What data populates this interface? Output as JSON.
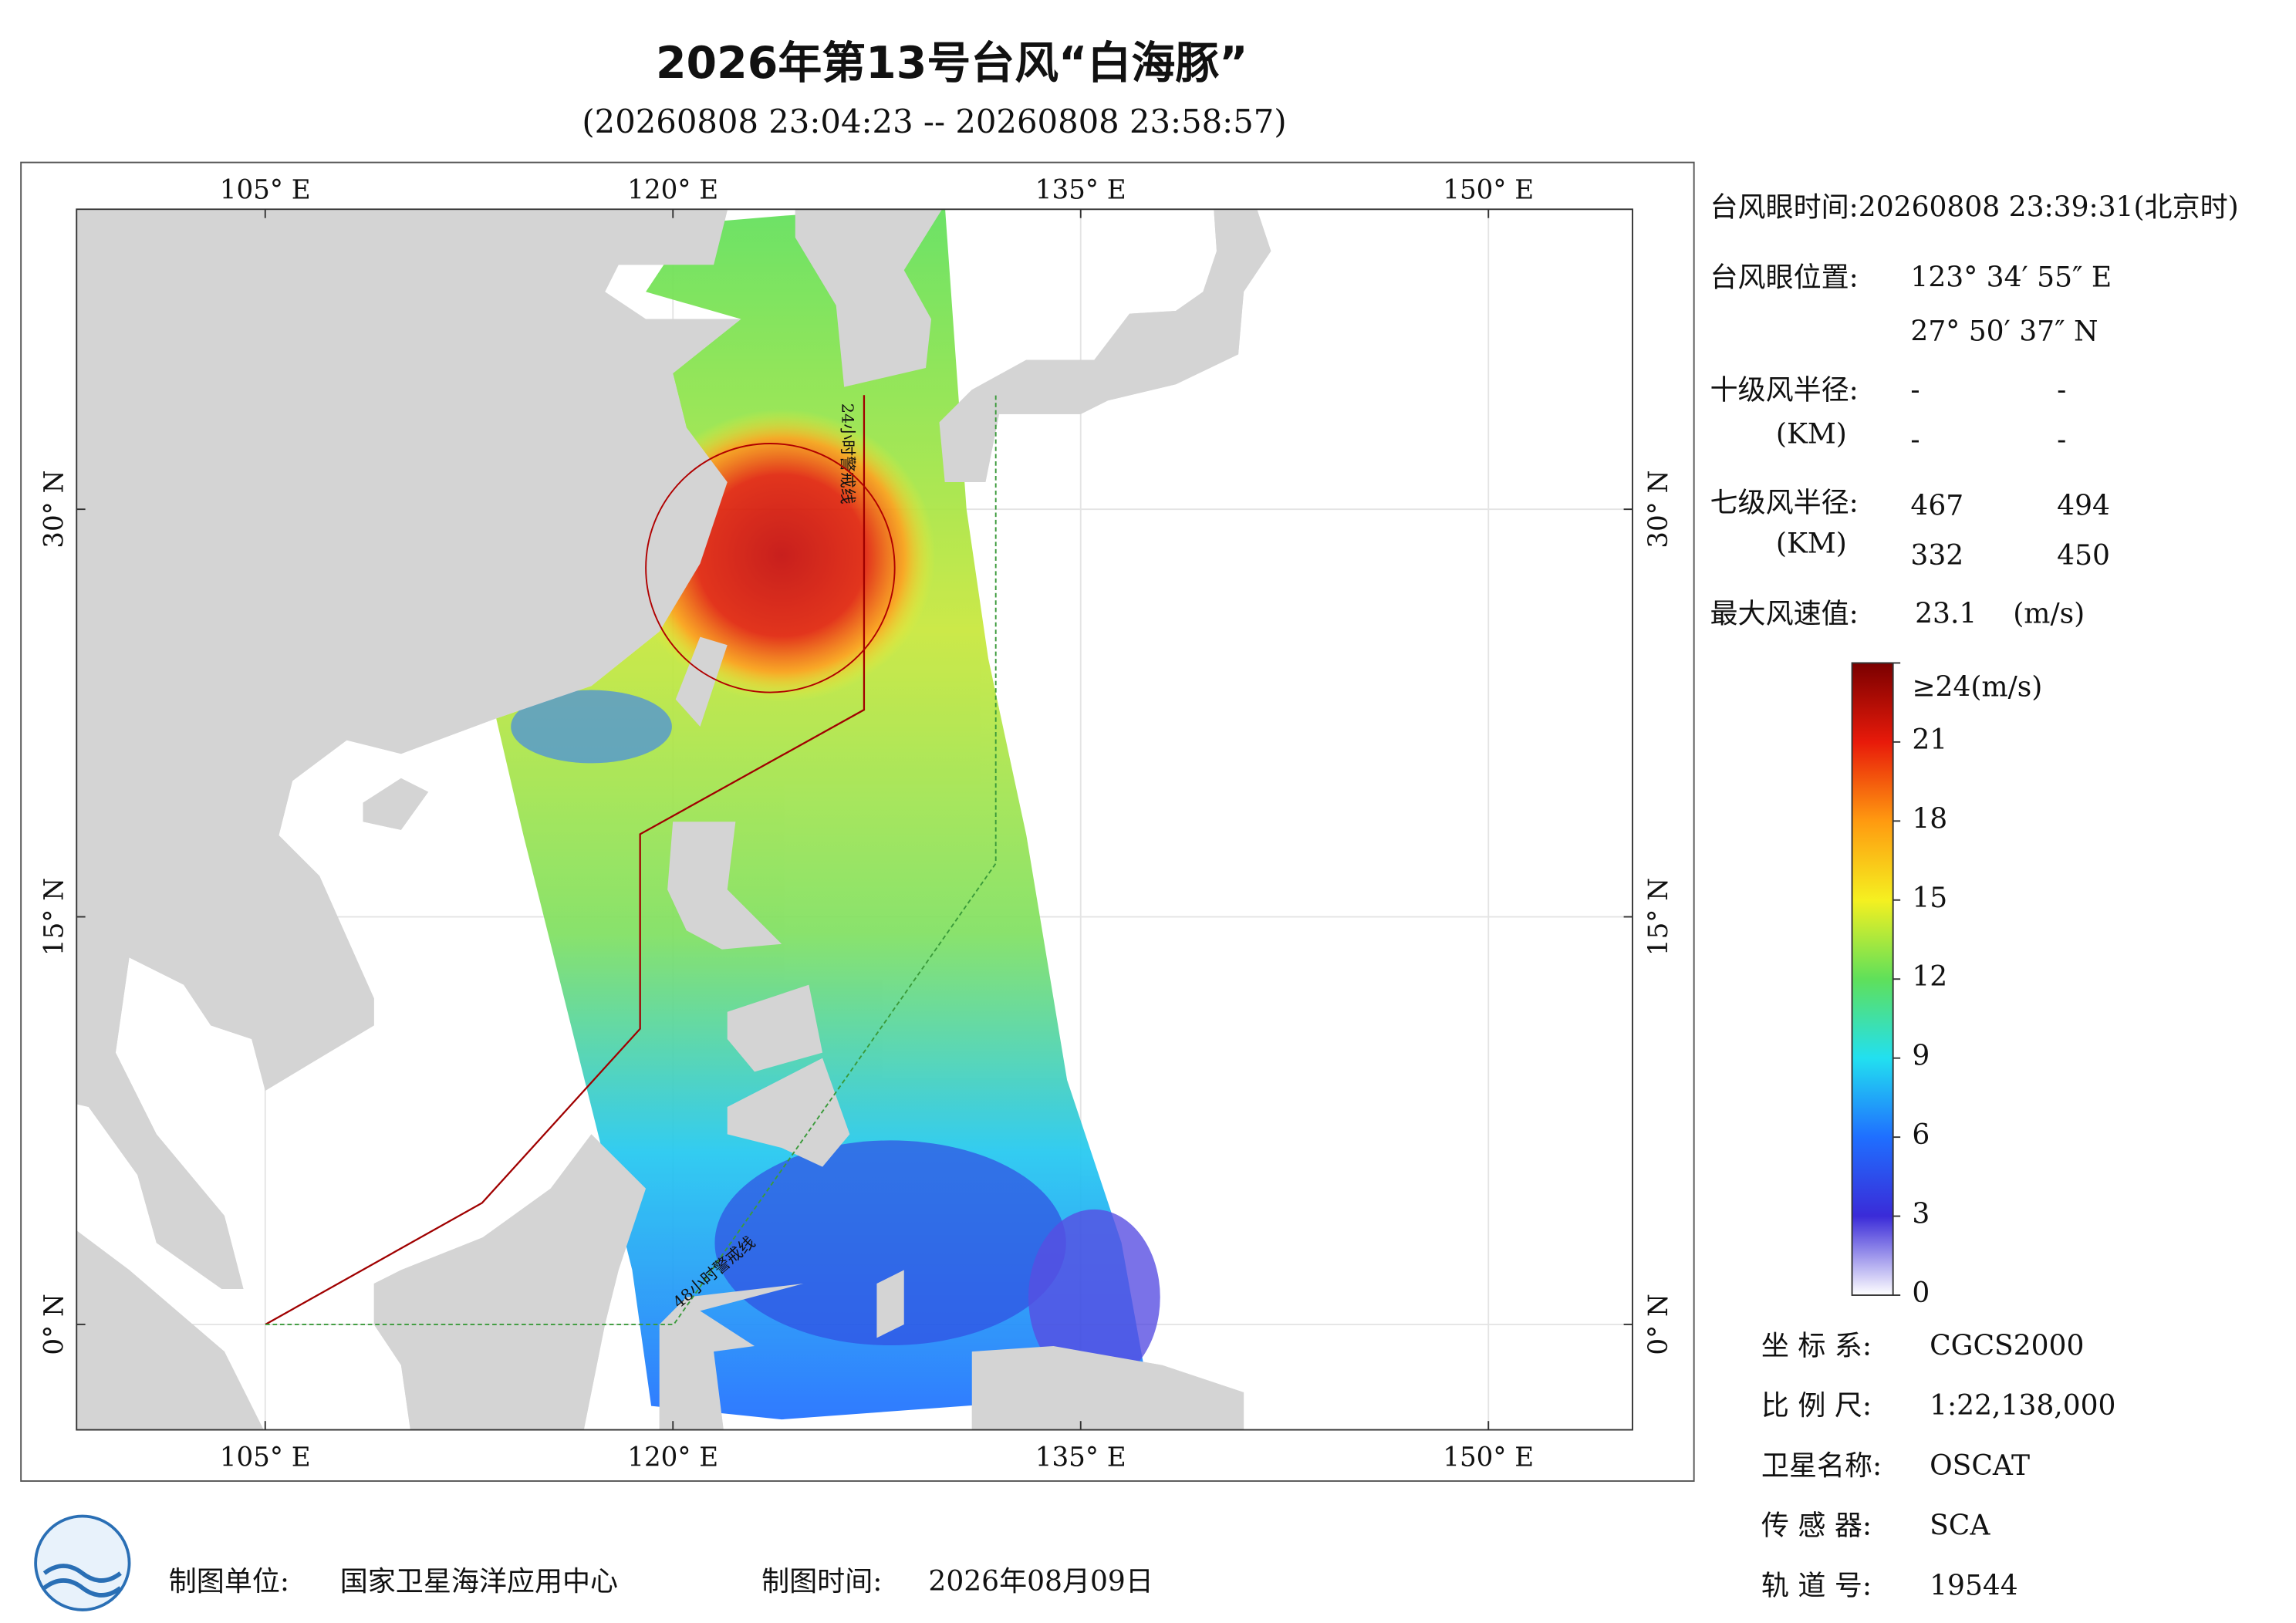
{
  "header": {
    "title": "2026年第13号台风“白海豚”",
    "subtitle": "(20260808 23:04:23 -- 20260808 23:58:57)"
  },
  "map": {
    "xticks": [
      {
        "value": 105,
        "label": "105° E"
      },
      {
        "value": 120,
        "label": "120° E"
      },
      {
        "value": 135,
        "label": "135° E"
      },
      {
        "value": 150,
        "label": "150° E"
      }
    ],
    "yticks": [
      {
        "value": 0,
        "label": "0° N"
      },
      {
        "value": 15,
        "label": "15° N"
      },
      {
        "value": 30,
        "label": "30° N"
      }
    ],
    "xlim": [
      98.06,
      155.3
    ],
    "ylim": [
      -3.88,
      41.04
    ],
    "labels": [
      "24小时警戒线",
      "48小时警戒线"
    ]
  },
  "info": {
    "eye_time": "台风眼时间:20260808 23:39:31(北京时)",
    "eye_position_label": "台风眼位置:",
    "eye_lon": "123° 34′ 55″ E",
    "eye_lat": "27° 50′ 37″ N",
    "r10_label": "十级风半径:",
    "r10_unit": "(KM)",
    "r10_values": [
      "-",
      "-",
      "-",
      "-"
    ],
    "r7_label": "七级风半径:",
    "r7_unit": "(KM)",
    "r7_values": [
      467,
      494,
      332,
      450
    ],
    "max_wind_label": "最大风速值:",
    "max_wind": 23.1,
    "max_wind_unit": "(m/s)"
  },
  "colorbar": {
    "ticks": [
      0,
      3,
      6,
      9,
      12,
      15,
      18,
      21,
      {
        "value": 24,
        "label": "≥24(m/s)"
      }
    ],
    "colors": [
      "#ffffff",
      "#3a2bd8",
      "#1f6fff",
      "#22e0f0",
      "#5fe05a",
      "#f5f020",
      "#ff9a10",
      "#e81a0a",
      "#7a0000"
    ]
  },
  "meta": [
    {
      "label": "坐 标 系:",
      "value": "CGCS2000"
    },
    {
      "label": "比 例 尺:",
      "value": "1:22,138,000"
    },
    {
      "label": "卫星名称:",
      "value": "OSCAT"
    },
    {
      "label": "传 感 器:",
      "value": "SCA"
    },
    {
      "label": "轨 道 号:",
      "value": "19544"
    }
  ],
  "footer": {
    "producer_label": "制图单位:",
    "producer": "国家卫星海洋应用中心",
    "time_label": "制图时间:",
    "time": "2026年08月09日"
  }
}
